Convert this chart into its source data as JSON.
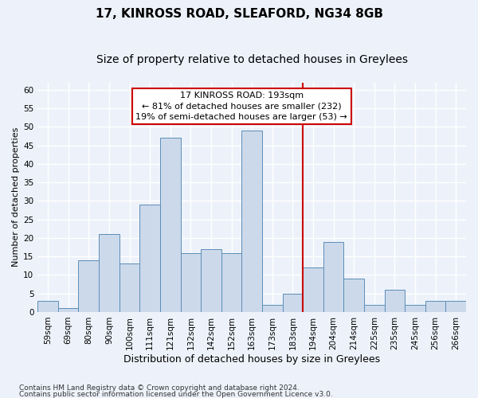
{
  "title1": "17, KINROSS ROAD, SLEAFORD, NG34 8GB",
  "title2": "Size of property relative to detached houses in Greylees",
  "xlabel": "Distribution of detached houses by size in Greylees",
  "ylabel": "Number of detached properties",
  "bins": [
    "59sqm",
    "69sqm",
    "80sqm",
    "90sqm",
    "100sqm",
    "111sqm",
    "121sqm",
    "132sqm",
    "142sqm",
    "152sqm",
    "163sqm",
    "173sqm",
    "183sqm",
    "194sqm",
    "204sqm",
    "214sqm",
    "225sqm",
    "235sqm",
    "245sqm",
    "256sqm",
    "266sqm"
  ],
  "values": [
    3,
    1,
    14,
    21,
    13,
    29,
    47,
    16,
    17,
    16,
    49,
    2,
    5,
    12,
    19,
    9,
    2,
    6,
    2,
    3,
    3
  ],
  "bar_color": "#ccd9ea",
  "bar_edge_color": "#5b8db8",
  "background_color": "#edf2fa",
  "grid_color": "#ffffff",
  "vline_x_index": 13.5,
  "vline_color": "#cc0000",
  "annotation_line1": "17 KINROSS ROAD: 193sqm",
  "annotation_line2": "← 81% of detached houses are smaller (232)",
  "annotation_line3": "19% of semi-detached houses are larger (53) →",
  "annotation_box_color": "#ffffff",
  "annotation_box_edge": "#cc0000",
  "ylim": [
    0,
    62
  ],
  "yticks": [
    0,
    5,
    10,
    15,
    20,
    25,
    30,
    35,
    40,
    45,
    50,
    55,
    60
  ],
  "footer1": "Contains HM Land Registry data © Crown copyright and database right 2024.",
  "footer2": "Contains public sector information licensed under the Open Government Licence v3.0.",
  "title1_fontsize": 11,
  "title2_fontsize": 10,
  "xlabel_fontsize": 9,
  "ylabel_fontsize": 8,
  "tick_fontsize": 7.5,
  "annot_fontsize": 8,
  "footer_fontsize": 6.5
}
